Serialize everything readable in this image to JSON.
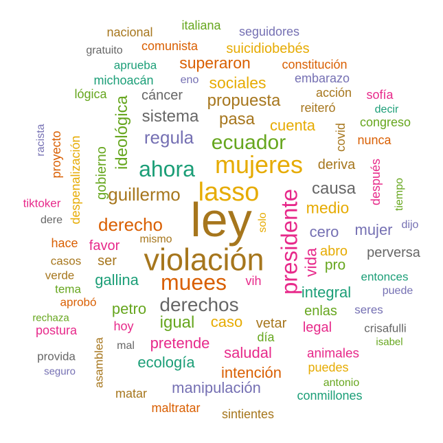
{
  "words": [
    {
      "text": "ley",
      "color": "#A6761D"
    },
    {
      "text": "violación",
      "color": "#A6761D"
    },
    {
      "text": "lasso",
      "color": "#E6AB02"
    },
    {
      "text": "mujeres",
      "color": "#E6AB02"
    },
    {
      "text": "presidente",
      "color": "#E7298A"
    },
    {
      "text": "ahora",
      "color": "#1B9E77"
    },
    {
      "text": "muees",
      "color": "#D95F02"
    },
    {
      "text": "derechos",
      "color": "#666666"
    },
    {
      "text": "guillermo",
      "color": "#A6761D"
    },
    {
      "text": "ecuador",
      "color": "#66A61E"
    },
    {
      "text": "derecho",
      "color": "#D95F02"
    },
    {
      "text": "integral",
      "color": "#1B9E77"
    },
    {
      "text": "regula",
      "color": "#7570B3"
    },
    {
      "text": "sistema",
      "color": "#666666"
    },
    {
      "text": "propuesta",
      "color": "#A6761D"
    },
    {
      "text": "sociales",
      "color": "#E6AB02"
    },
    {
      "text": "superaron",
      "color": "#D95F02"
    },
    {
      "text": "ideológica",
      "color": "#66A61E"
    },
    {
      "text": "gallina",
      "color": "#1B9E77"
    },
    {
      "text": "causa",
      "color": "#666666"
    },
    {
      "text": "medio",
      "color": "#E6AB02"
    },
    {
      "text": "vida",
      "color": "#E7298A"
    },
    {
      "text": "pasa",
      "color": "#A6761D"
    },
    {
      "text": "cuenta",
      "color": "#E6AB02"
    },
    {
      "text": "deriva",
      "color": "#A6761D"
    },
    {
      "text": "cero",
      "color": "#7570B3"
    },
    {
      "text": "mujer",
      "color": "#7570B3"
    },
    {
      "text": "abro",
      "color": "#E6AB02"
    },
    {
      "text": "pro",
      "color": "#66A61E"
    },
    {
      "text": "perversa",
      "color": "#666666"
    },
    {
      "text": "petro",
      "color": "#66A61E"
    },
    {
      "text": "igual",
      "color": "#66A61E"
    },
    {
      "text": "caso",
      "color": "#E6AB02"
    },
    {
      "text": "vetar",
      "color": "#A6761D"
    },
    {
      "text": "pretende",
      "color": "#E7298A"
    },
    {
      "text": "saludal",
      "color": "#E7298A"
    },
    {
      "text": "ecología",
      "color": "#1B9E77"
    },
    {
      "text": "intención",
      "color": "#D95F02"
    },
    {
      "text": "manipulación",
      "color": "#7570B3"
    },
    {
      "text": "favor",
      "color": "#E7298A"
    },
    {
      "text": "ser",
      "color": "#A6761D"
    },
    {
      "text": "vih",
      "color": "#E7298A"
    },
    {
      "text": "enlas",
      "color": "#66A61E"
    },
    {
      "text": "legal",
      "color": "#E7298A"
    },
    {
      "text": "día",
      "color": "#66A61E"
    },
    {
      "text": "animales",
      "color": "#E7298A"
    },
    {
      "text": "puedes",
      "color": "#E6AB02"
    },
    {
      "text": "conmillones",
      "color": "#1B9E77"
    },
    {
      "text": "sintientes",
      "color": "#A6761D"
    },
    {
      "text": "maltratar",
      "color": "#D95F02"
    },
    {
      "text": "matar",
      "color": "#A6761D"
    },
    {
      "text": "antonio",
      "color": "#66A61E"
    },
    {
      "text": "gobierno",
      "color": "#66A61E"
    },
    {
      "text": "despenalización",
      "color": "#E6AB02"
    },
    {
      "text": "proyecto",
      "color": "#D95F02"
    },
    {
      "text": "racista",
      "color": "#7570B3"
    },
    {
      "text": "cáncer",
      "color": "#666666"
    },
    {
      "text": "lógica",
      "color": "#66A61E"
    },
    {
      "text": "michoacán",
      "color": "#1B9E77"
    },
    {
      "text": "eno",
      "color": "#7570B3"
    },
    {
      "text": "embarazo",
      "color": "#7570B3"
    },
    {
      "text": "acción",
      "color": "#A6761D"
    },
    {
      "text": "reiteró",
      "color": "#A6761D"
    },
    {
      "text": "sofía",
      "color": "#E7298A"
    },
    {
      "text": "decir",
      "color": "#1B9E77"
    },
    {
      "text": "congreso",
      "color": "#66A61E"
    },
    {
      "text": "nunca",
      "color": "#D95F02"
    },
    {
      "text": "covid",
      "color": "#A6761D"
    },
    {
      "text": "después",
      "color": "#E7298A"
    },
    {
      "text": "tiempo",
      "color": "#66A61E"
    },
    {
      "text": "dijo",
      "color": "#7570B3"
    },
    {
      "text": "solo",
      "color": "#E6AB02"
    },
    {
      "text": "tiktoker",
      "color": "#E7298A"
    },
    {
      "text": "dere",
      "color": "#666666"
    },
    {
      "text": "hace",
      "color": "#D95F02"
    },
    {
      "text": "mismo",
      "color": "#A6761D"
    },
    {
      "text": "casos",
      "color": "#A6761D"
    },
    {
      "text": "verde",
      "color": "#A6761D"
    },
    {
      "text": "tema",
      "color": "#66A61E"
    },
    {
      "text": "aprobó",
      "color": "#D95F02"
    },
    {
      "text": "rechaza",
      "color": "#66A61E"
    },
    {
      "text": "postura",
      "color": "#E7298A"
    },
    {
      "text": "hoy",
      "color": "#E7298A"
    },
    {
      "text": "mal",
      "color": "#666666"
    },
    {
      "text": "provida",
      "color": "#666666"
    },
    {
      "text": "seguro",
      "color": "#7570B3"
    },
    {
      "text": "asamblea",
      "color": "#A6761D"
    },
    {
      "text": "entonces",
      "color": "#1B9E77"
    },
    {
      "text": "puede",
      "color": "#7570B3"
    },
    {
      "text": "seres",
      "color": "#7570B3"
    },
    {
      "text": "crisafulli",
      "color": "#666666"
    },
    {
      "text": "isabel",
      "color": "#66A61E"
    },
    {
      "text": "nacional",
      "color": "#A6761D"
    },
    {
      "text": "italiana",
      "color": "#66A61E"
    },
    {
      "text": "seguidores",
      "color": "#7570B3"
    },
    {
      "text": "gratuito",
      "color": "#666666"
    },
    {
      "text": "comunista",
      "color": "#D95F02"
    },
    {
      "text": "suicidiobebés",
      "color": "#E6AB02"
    },
    {
      "text": "aprueba",
      "color": "#1B9E77"
    },
    {
      "text": "constitución",
      "color": "#D95F02"
    }
  ]
}
